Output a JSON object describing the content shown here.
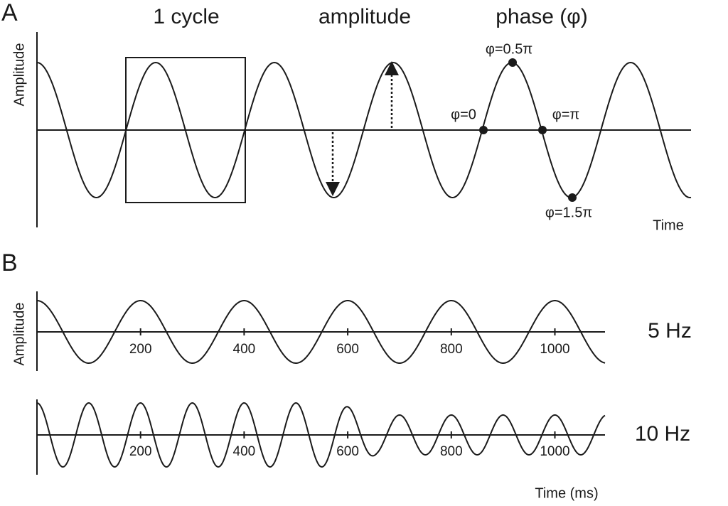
{
  "panel_a": {
    "label": "A",
    "titles": [
      "1 cycle",
      "amplitude",
      "phase (φ)"
    ],
    "y_axis_label": "Amplitude",
    "x_axis_label": "Time",
    "phase_labels": [
      "φ=0",
      "φ=0.5π",
      "φ=π",
      "φ=1.5π"
    ]
  },
  "panel_b": {
    "label": "B",
    "y_axis_label": "Amplitude",
    "time_ticks": [
      200,
      400,
      600,
      800,
      1000
    ],
    "rows": [
      "5 Hz",
      "10 Hz"
    ],
    "x_axis_label": "Time (ms)"
  }
}
